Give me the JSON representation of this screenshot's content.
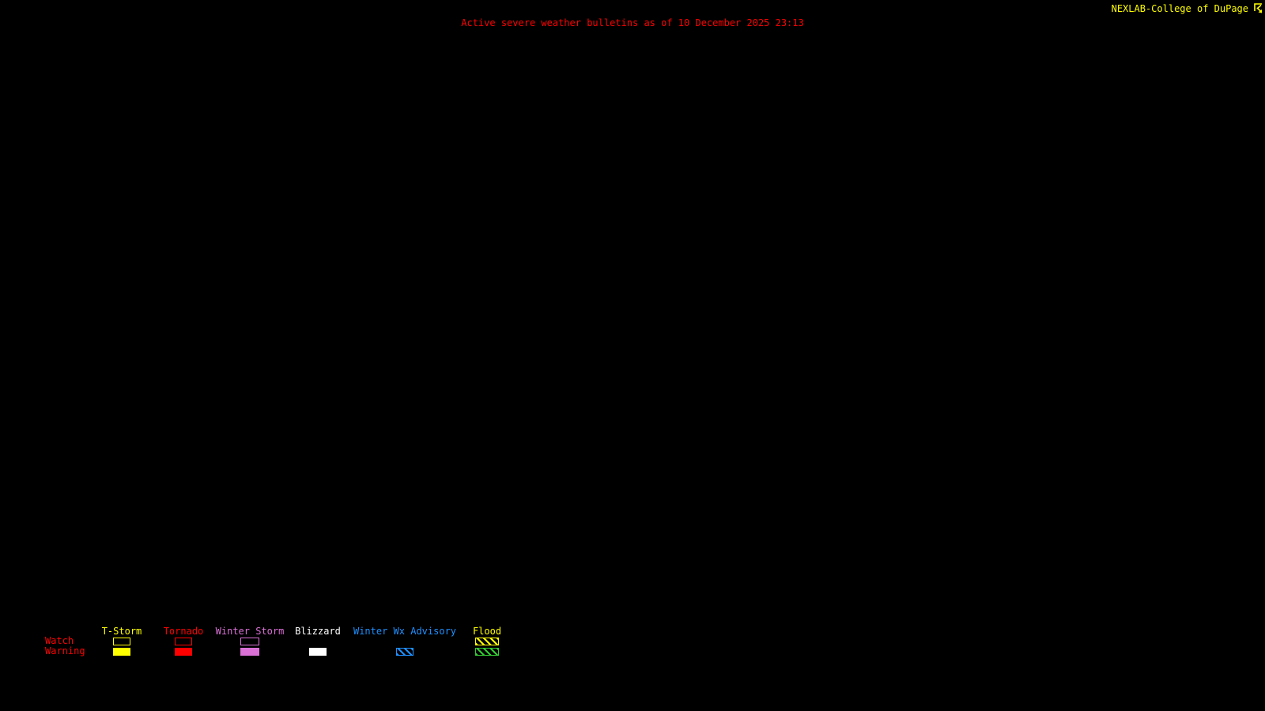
{
  "header": {
    "attribution": "NEXLAB-College of DuPage",
    "title": "Active severe weather bulletins as of 10 December 2025 23:13"
  },
  "colors": {
    "background": "#000000",
    "title_red": "#FF0000",
    "attribution_yellow": "#FFFF00"
  },
  "legend": {
    "row_labels": [
      "Watch",
      "Warning"
    ],
    "columns": [
      {
        "id": "t-storm",
        "label": "T-Storm",
        "color": "#FFFF00",
        "watch_style": "outline",
        "warning_style": "fill"
      },
      {
        "id": "tornado",
        "label": "Tornado",
        "color": "#FF0000",
        "watch_style": "outline",
        "warning_style": "fill"
      },
      {
        "id": "winter-storm",
        "label": "Winter Storm",
        "color": "#DA70D6",
        "watch_style": "outline",
        "warning_style": "fill"
      },
      {
        "id": "blizzard",
        "label": "Blizzard",
        "color": "#FFFFFF",
        "watch_style": "none",
        "warning_style": "fill"
      },
      {
        "id": "winter-wx-advisory",
        "label": "Winter Wx Advisory",
        "color": "#1E90FF",
        "watch_style": "none",
        "warning_style": "hatch"
      },
      {
        "id": "flood",
        "label": "Flood",
        "color": "#FFFF00",
        "warning_color": "#32CD32",
        "watch_style": "hatch",
        "warning_style": "hatch"
      }
    ]
  }
}
